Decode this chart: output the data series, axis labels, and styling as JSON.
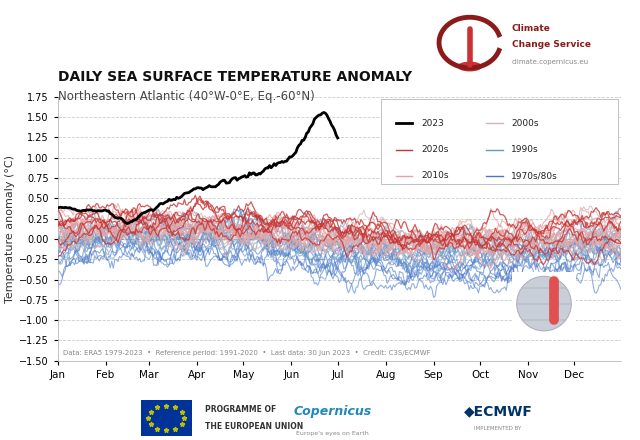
{
  "title": "DAILY SEA SURFACE TEMPERATURE ANOMALY",
  "subtitle": "Northeastern Atlantic (40°W-0°E, Eq.-60°N)",
  "ylabel": "Temperature anomaly (°C)",
  "ylim": [
    -1.5,
    1.75
  ],
  "yticks": [
    -1.5,
    -1.25,
    -1.0,
    -0.75,
    -0.5,
    -0.25,
    0.0,
    0.25,
    0.5,
    0.75,
    1.0,
    1.25,
    1.5,
    1.75
  ],
  "months": [
    "Jan",
    "Feb",
    "Mar",
    "Apr",
    "May",
    "Jun",
    "Jul",
    "Aug",
    "Sep",
    "Oct",
    "Nov",
    "Dec"
  ],
  "footnote": "Data: ERA5 1979-2023  •  Reference period: 1991-2020  •  Last data: 30 Jun 2023  •  Credit: C3S/ECMWF",
  "bg_color": "#ffffff",
  "grid_color": "#e8e8e8",
  "color_2023": "#000000",
  "color_2020s": "#c83232",
  "color_2010s": "#e8a0a0",
  "color_2000s": "#d4b4b4",
  "color_1990s": "#6496c8",
  "color_1970s80s": "#4878c8",
  "seed": 42,
  "month_days": [
    0,
    31,
    59,
    90,
    120,
    151,
    181,
    212,
    243,
    273,
    304,
    334,
    365
  ]
}
